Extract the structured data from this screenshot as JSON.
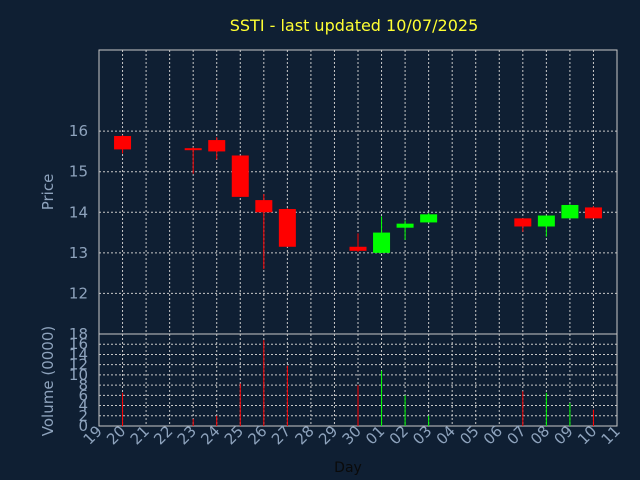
{
  "chart_data": {
    "type": "candlestick",
    "title": "SSTI - last updated 10/07/2025",
    "xlabel": "Day",
    "ylabel_price": "Price",
    "ylabel_volume": "Volume (0000)",
    "x_ticks": [
      "19",
      "20",
      "21",
      "22",
      "23",
      "24",
      "25",
      "26",
      "27",
      "28",
      "29",
      "30",
      "01",
      "02",
      "03",
      "04",
      "05",
      "06",
      "07",
      "08",
      "09",
      "10",
      "11"
    ],
    "price_ylim": [
      11,
      18
    ],
    "price_yticks": [
      12,
      13,
      14,
      15,
      16
    ],
    "volume_ylim": [
      0,
      18
    ],
    "volume_yticks": [
      0,
      2,
      4,
      6,
      8,
      10,
      12,
      14,
      16,
      18
    ],
    "grid": true,
    "colors": {
      "up": "#00ff00",
      "down": "#ff0000",
      "grid": "#c8c8c8",
      "background": "#0f1f33",
      "title": "#ffff33",
      "axis_text": "#8ea3bd"
    },
    "candles": [
      {
        "day": "20",
        "open": 15.88,
        "high": 15.9,
        "low": 15.45,
        "close": 15.55,
        "volume": 6.5
      },
      {
        "day": "23",
        "open": 15.58,
        "high": 15.6,
        "low": 14.95,
        "close": 15.55,
        "volume": 1.4
      },
      {
        "day": "24",
        "open": 15.78,
        "high": 15.85,
        "low": 15.3,
        "close": 15.5,
        "volume": 2.0
      },
      {
        "day": "25",
        "open": 15.4,
        "high": 15.4,
        "low": 14.38,
        "close": 14.38,
        "volume": 8.3
      },
      {
        "day": "26",
        "open": 14.3,
        "high": 14.45,
        "low": 12.6,
        "close": 14.0,
        "volume": 16.8
      },
      {
        "day": "27",
        "open": 14.08,
        "high": 14.1,
        "low": 13.15,
        "close": 13.15,
        "volume": 11.8
      },
      {
        "day": "30",
        "open": 13.15,
        "high": 13.48,
        "low": 13.02,
        "close": 13.05,
        "volume": 8.0
      },
      {
        "day": "01",
        "open": 13.0,
        "high": 13.9,
        "low": 13.0,
        "close": 13.5,
        "volume": 10.8
      },
      {
        "day": "02",
        "open": 13.62,
        "high": 13.8,
        "low": 13.32,
        "close": 13.72,
        "volume": 6.0
      },
      {
        "day": "03",
        "open": 13.75,
        "high": 13.98,
        "low": 13.75,
        "close": 13.95,
        "volume": 2.0
      },
      {
        "day": "07",
        "open": 13.85,
        "high": 13.85,
        "low": 13.52,
        "close": 13.65,
        "volume": 6.8
      },
      {
        "day": "08",
        "open": 13.65,
        "high": 13.92,
        "low": 13.4,
        "close": 13.92,
        "volume": 6.5
      },
      {
        "day": "09",
        "open": 13.85,
        "high": 14.2,
        "low": 13.85,
        "close": 14.18,
        "volume": 4.5
      },
      {
        "day": "10",
        "open": 14.12,
        "high": 14.15,
        "low": 13.85,
        "close": 13.85,
        "volume": 3.2
      }
    ]
  }
}
